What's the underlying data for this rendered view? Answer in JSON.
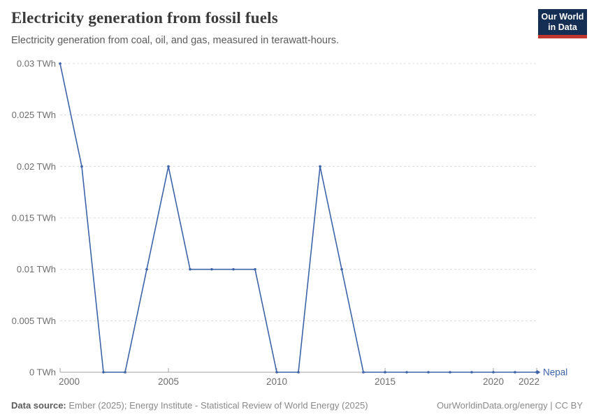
{
  "header": {
    "title": "Electricity generation from fossil fuels",
    "subtitle": "Electricity generation from coal, oil, and gas, measured in terawatt-hours.",
    "logo": {
      "line1": "Our World",
      "line2": "in Data",
      "bg_color": "#152e53",
      "accent_color": "#c0372e"
    }
  },
  "chart_data": {
    "type": "line",
    "title": "Electricity generation from fossil fuels",
    "unit": "TWh",
    "entity": "Nepal",
    "x": [
      2000,
      2001,
      2002,
      2003,
      2004,
      2005,
      2006,
      2007,
      2008,
      2009,
      2010,
      2011,
      2012,
      2013,
      2014,
      2015,
      2016,
      2017,
      2018,
      2019,
      2020,
      2021,
      2022
    ],
    "series": [
      {
        "name": "Nepal",
        "color": "#3d63a8",
        "values": [
          0.03,
          0.02,
          0,
          0,
          0.01,
          0.02,
          0.01,
          0.01,
          0.01,
          0.01,
          0,
          0,
          0.02,
          0.01,
          0,
          0,
          0,
          0,
          0,
          0,
          0,
          0,
          0
        ]
      }
    ],
    "xlim": [
      2000,
      2022
    ],
    "ylim": [
      0,
      0.03
    ],
    "x_ticks": [
      2000,
      2005,
      2010,
      2015,
      2020,
      2022
    ],
    "x_tick_labels": [
      "2000",
      "2005",
      "2010",
      "2015",
      "2020",
      "2022"
    ],
    "y_ticks": [
      0,
      0.005,
      0.01,
      0.015,
      0.02,
      0.025,
      0.03
    ],
    "y_tick_labels": [
      "0 TWh",
      "0.005 TWh",
      "0.01 TWh",
      "0.015 TWh",
      "0.02 TWh",
      "0.025 TWh",
      "0.03 TWh"
    ],
    "grid": true,
    "legend_position": "end-of-line",
    "colors": {
      "line": "#3d63a8",
      "grid": "#dcdcdc",
      "axis": "#a3a3a3",
      "tick_text": "#6e6e6e"
    }
  },
  "footer": {
    "data_source_label": "Data source:",
    "data_source_text": " Ember (2025); Energy Institute - Statistical Review of World Energy (2025)",
    "right_text": "OurWorldinData.org/energy | CC BY"
  }
}
